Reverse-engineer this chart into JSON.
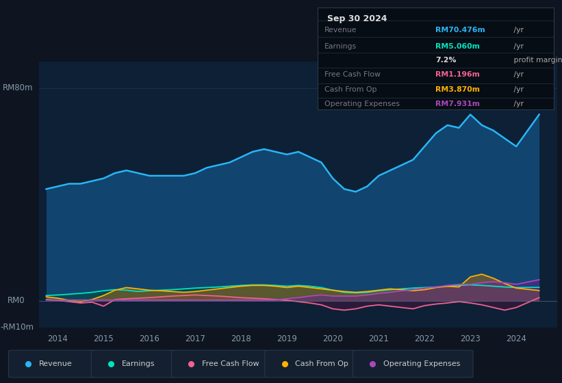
{
  "bg_color": "#0e1520",
  "plot_bg_color": "#0d2035",
  "title": "Sep 30 2024",
  "ylim": [
    -10,
    90
  ],
  "xticks": [
    2014,
    2015,
    2016,
    2017,
    2018,
    2019,
    2020,
    2021,
    2022,
    2023,
    2024
  ],
  "legend": [
    {
      "label": "Revenue",
      "color": "#29b6f6"
    },
    {
      "label": "Earnings",
      "color": "#00e5c0"
    },
    {
      "label": "Free Cash Flow",
      "color": "#f06292"
    },
    {
      "label": "Cash From Op",
      "color": "#ffb300"
    },
    {
      "label": "Operating Expenses",
      "color": "#ab47bc"
    }
  ],
  "revenue_color": "#29b6f6",
  "revenue_fill": "#1565a0",
  "earnings_color": "#00e5c0",
  "earnings_fill": "#004d40",
  "fcf_color": "#f06292",
  "fcf_fill": "#880e4f",
  "cfo_color": "#ffb300",
  "cfo_fill": "#bf6c00",
  "opex_color": "#ab47bc",
  "opex_fill": "#6a1b9a",
  "series": {
    "years": [
      2013.75,
      2014.0,
      2014.25,
      2014.5,
      2014.75,
      2015.0,
      2015.25,
      2015.5,
      2015.75,
      2016.0,
      2016.25,
      2016.5,
      2016.75,
      2017.0,
      2017.25,
      2017.5,
      2017.75,
      2018.0,
      2018.25,
      2018.5,
      2018.75,
      2019.0,
      2019.25,
      2019.5,
      2019.75,
      2020.0,
      2020.25,
      2020.5,
      2020.75,
      2021.0,
      2021.25,
      2021.5,
      2021.75,
      2022.0,
      2022.25,
      2022.5,
      2022.75,
      2023.0,
      2023.25,
      2023.5,
      2023.75,
      2024.0,
      2024.5
    ],
    "revenue": [
      42,
      43,
      44,
      44,
      45,
      46,
      48,
      49,
      48,
      47,
      47,
      47,
      47,
      48,
      50,
      51,
      52,
      54,
      56,
      57,
      56,
      55,
      56,
      54,
      52,
      46,
      42,
      41,
      43,
      47,
      49,
      51,
      53,
      58,
      63,
      66,
      65,
      70,
      66,
      64,
      61,
      58,
      70
    ],
    "earnings": [
      2.0,
      2.2,
      2.5,
      2.8,
      3.2,
      3.8,
      4.2,
      4.0,
      3.5,
      3.8,
      4.0,
      4.2,
      4.5,
      4.8,
      5.0,
      5.2,
      5.5,
      5.8,
      6.0,
      6.0,
      5.8,
      5.5,
      5.8,
      5.5,
      5.0,
      4.0,
      3.2,
      3.0,
      3.2,
      3.8,
      4.2,
      4.5,
      4.8,
      5.0,
      5.2,
      5.5,
      5.8,
      6.0,
      5.8,
      5.5,
      5.2,
      5.0,
      5.06
    ],
    "free_cash_flow": [
      0.5,
      0.2,
      -0.3,
      -0.8,
      -0.5,
      -2.0,
      0.5,
      0.8,
      1.0,
      1.2,
      1.5,
      1.8,
      2.0,
      2.2,
      2.0,
      1.8,
      1.5,
      1.2,
      1.0,
      0.8,
      0.5,
      0.2,
      -0.3,
      -0.8,
      -1.5,
      -3.0,
      -3.5,
      -3.0,
      -2.0,
      -1.5,
      -2.0,
      -2.5,
      -3.0,
      -1.8,
      -1.2,
      -0.8,
      -0.3,
      -0.8,
      -1.5,
      -2.5,
      -3.5,
      -2.5,
      1.2
    ],
    "cash_from_op": [
      1.5,
      1.0,
      0.2,
      -0.3,
      0.5,
      2.0,
      4.0,
      5.0,
      4.5,
      4.0,
      3.8,
      3.5,
      3.2,
      3.5,
      4.0,
      4.5,
      5.0,
      5.5,
      5.8,
      5.8,
      5.5,
      5.0,
      5.5,
      5.0,
      4.5,
      4.0,
      3.5,
      3.2,
      3.5,
      4.0,
      4.5,
      4.2,
      3.8,
      4.2,
      5.0,
      5.5,
      5.2,
      9.0,
      10.0,
      8.5,
      6.5,
      4.8,
      3.87
    ],
    "operating_expenses": [
      0.3,
      0.3,
      0.3,
      0.3,
      0.3,
      0.3,
      0.3,
      0.3,
      0.3,
      0.3,
      0.3,
      0.3,
      0.3,
      0.3,
      0.3,
      0.3,
      0.3,
      0.3,
      0.3,
      0.3,
      0.3,
      0.8,
      1.2,
      1.8,
      2.2,
      1.8,
      1.8,
      1.8,
      2.2,
      2.8,
      3.2,
      3.8,
      4.2,
      4.8,
      5.2,
      5.8,
      6.2,
      6.2,
      6.8,
      7.2,
      6.8,
      6.2,
      7.93
    ]
  }
}
